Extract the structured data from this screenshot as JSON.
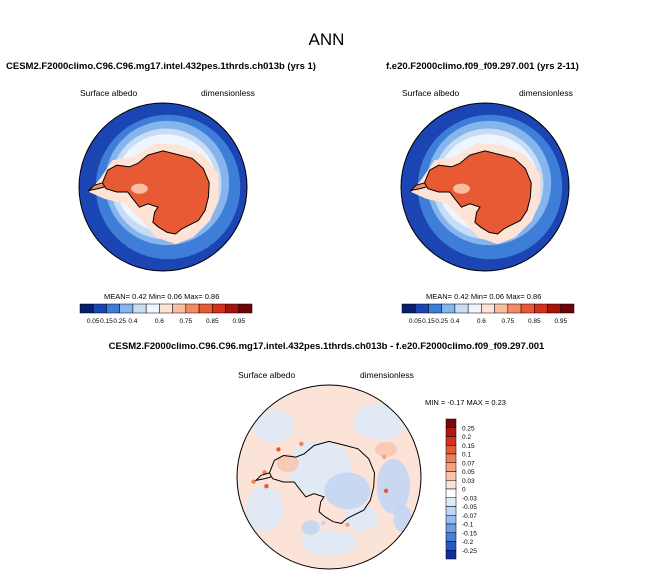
{
  "figure": {
    "title": "ANN"
  },
  "chart_data": [
    {
      "type": "heatmap",
      "title": "CESM2.F2000climo.C96.C96.mg17.intel.432pes.1thrds.ch013b (yrs 1)",
      "left_label": "Surface albedo",
      "right_label": "dimensionless",
      "projection": "south-polar stereographic",
      "stats": {
        "mean_label": "MEAN=",
        "mean": "0.42",
        "min_label": "Min=",
        "min": "0.06",
        "max_label": "Max=",
        "max": "0.86"
      },
      "colorbar": {
        "orientation": "horizontal",
        "levels": [
          "0.05",
          "0.15",
          "0.25",
          "0.4",
          "0.6",
          "0.75",
          "0.85",
          "0.95"
        ],
        "colors": [
          "#08206b",
          "#1c45b4",
          "#3f7ed8",
          "#86b4ec",
          "#c8ddf5",
          "#eef5fc",
          "#fde4d6",
          "#f9bd9f",
          "#f38c66",
          "#e85a34",
          "#d22f1c",
          "#a4140c",
          "#6d0508"
        ]
      }
    },
    {
      "type": "heatmap",
      "title": "f.e20.F2000climo.f09_f09.297.001 (yrs 2-11)",
      "left_label": "Surface albedo",
      "right_label": "dimensionless",
      "projection": "south-polar stereographic",
      "stats": {
        "mean_label": "MEAN=",
        "mean": "0.42",
        "min_label": "Min=",
        "min": "0.06",
        "max_label": "Max=",
        "max": "0.86"
      },
      "colorbar": {
        "orientation": "horizontal",
        "levels": [
          "0.05",
          "0.15",
          "0.25",
          "0.4",
          "0.6",
          "0.75",
          "0.85",
          "0.95"
        ],
        "colors": [
          "#08206b",
          "#1c45b4",
          "#3f7ed8",
          "#86b4ec",
          "#c8ddf5",
          "#eef5fc",
          "#fde4d6",
          "#f9bd9f",
          "#f38c66",
          "#e85a34",
          "#d22f1c",
          "#a4140c",
          "#6d0508"
        ]
      }
    },
    {
      "type": "heatmap",
      "title": "CESM2.F2000climo.C96.C96.mg17.intel.432pes.1thrds.ch013b - f.e20.F2000climo.f09_f09.297.001",
      "left_label": "Surface albedo",
      "right_label": "dimensionless",
      "projection": "south-polar stereographic",
      "stats": {
        "min_label": "MIN =",
        "min": "-0.17",
        "max_label": "MAX =",
        "max": "0.23"
      },
      "colorbar": {
        "orientation": "vertical",
        "levels": [
          "0.25",
          "0.2",
          "0.15",
          "0.1",
          "0.07",
          "0.05",
          "0.03",
          "0",
          "-0.03",
          "-0.05",
          "-0.07",
          "-0.1",
          "-0.15",
          "-0.2",
          "-0.25"
        ],
        "colors": [
          "#7a0808",
          "#b5170f",
          "#d3331d",
          "#e55a38",
          "#f0805a",
          "#f5a283",
          "#f9c4ad",
          "#fce3d7",
          "#ffffff",
          "#dceafa",
          "#bfd6f5",
          "#98bdef",
          "#6f9ee5",
          "#477ed8",
          "#2657c6",
          "#0d2f9e"
        ]
      }
    }
  ]
}
